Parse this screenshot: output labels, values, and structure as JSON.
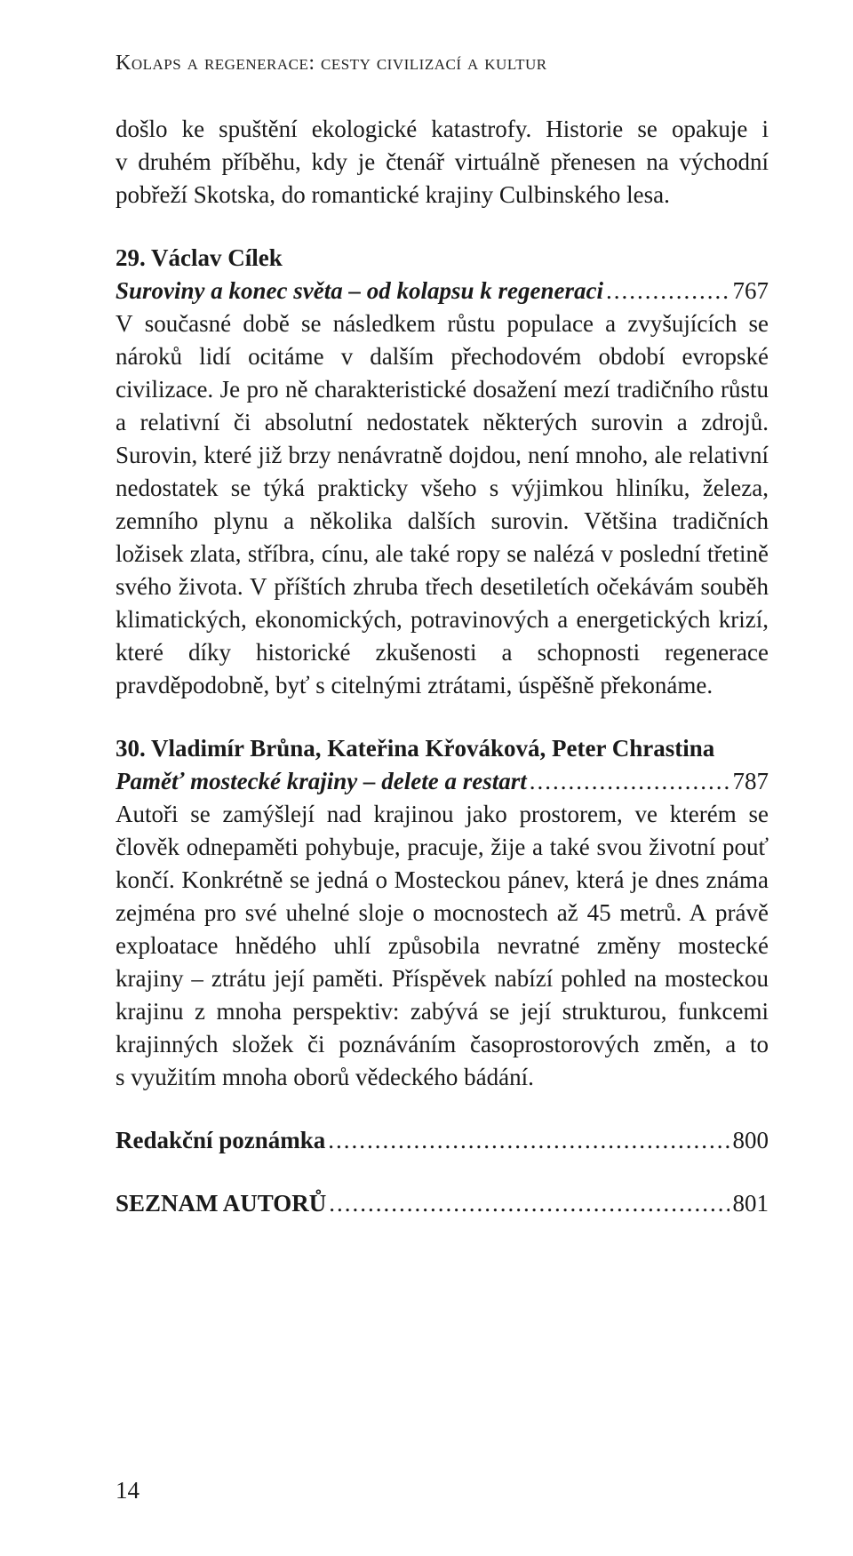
{
  "page": {
    "running_header": "Kolaps a regenerace: cesty civilizací a kultur",
    "page_number": "14"
  },
  "entry28_continuation": "došlo ke spuštění ekologické katastrofy. Historie se opakuje i v druhém příběhu, kdy je čtenář virtuálně přenesen na východní pobřeží Skotska, do romantické krajiny Culbinského lesa.",
  "entry29": {
    "authors": "29. Václav Cílek",
    "subtitle": "Suroviny a konec světa – od kolapsu k regeneraci",
    "page": "767",
    "abstract": "V současné době se následkem růstu populace a zvyšujících se nároků lidí ocitáme v dalším přechodovém období evropské civilizace. Je pro ně charakteristické dosažení mezí tradičního růstu a relativní či absolutní nedostatek některých surovin a zdrojů. Surovin, které již brzy nenávratně dojdou, není mnoho, ale relativní nedostatek se týká prakticky všeho s výjimkou hliníku, železa, zemního plynu a několika dalších surovin. Většina tradičních ložisek zlata, stříbra, cínu, ale také ropy se nalézá v poslední třetině svého života. V příštích zhruba třech desetiletích očekávám souběh klimatických, ekonomických, potravinových a energetických krizí, které díky historické zkušenosti a schopnosti regenerace pravděpodobně, byť s citelnými ztrátami, úspěšně překonáme."
  },
  "entry30": {
    "authors": "30. Vladimír Brůna, Kateřina Křováková, Peter Chrastina",
    "subtitle": "Paměť mostecké krajiny – delete a restart",
    "page": "787",
    "abstract": "Autoři se zamýšlejí nad krajinou jako prostorem, ve kterém se člověk odnepaměti pohybuje, pracuje, žije a také svou životní pouť končí. Konkrétně se jedná o Mosteckou pánev, která je dnes známa zejména pro své uhelné sloje o mocnostech až 45 metrů. A právě exploatace hnědého uhlí způsobila nevratné změny mostecké krajiny – ztrátu její paměti. Příspěvek nabízí pohled na mosteckou krajinu z mnoha perspektiv: zabývá se její strukturou, funkcemi krajinných složek či poznáváním časoprostorových změn, a to s využitím mnoha oborů vědeckého bádání."
  },
  "redakcni": {
    "label": "Redakční poznámka",
    "page": "800"
  },
  "seznam": {
    "label": "SEZNAM AUTORŮ",
    "page": "801"
  }
}
